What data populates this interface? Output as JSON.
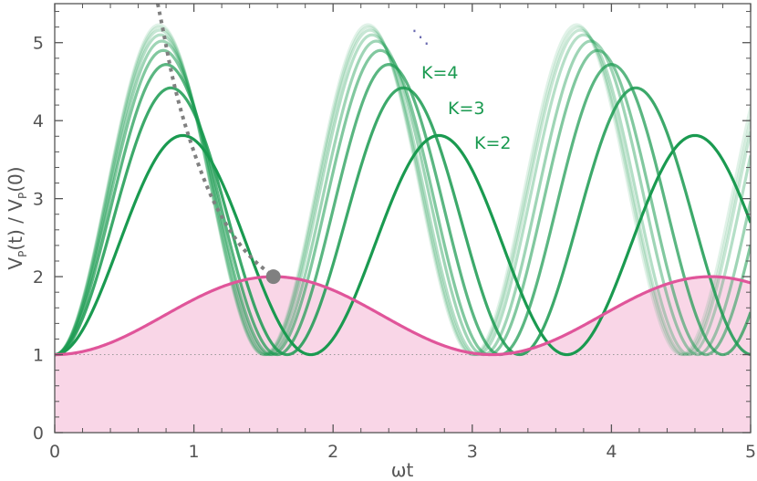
{
  "chart_data": {
    "type": "line",
    "xlabel": "ωt",
    "ylabel": "V_P(t) / V_P(0)",
    "ylabel_parts": [
      "V",
      "P",
      "(t) / V",
      "P",
      "(0)"
    ],
    "xlim": [
      0,
      5
    ],
    "ylim": [
      0,
      5.5
    ],
    "x_ticks": [
      0,
      1,
      2,
      3,
      4,
      5
    ],
    "y_ticks": [
      0,
      1,
      2,
      3,
      4,
      5
    ],
    "grid": false,
    "baseline_y": 1,
    "pink_curve": {
      "formula": "1.5 - 0.5*cos(2x)",
      "x": [
        0,
        0.5,
        1.0,
        1.5708,
        2.0,
        2.5,
        3.1416,
        3.5,
        4.0,
        4.7124,
        5.0
      ],
      "y": [
        1.0,
        1.23,
        1.71,
        2.0,
        1.83,
        1.36,
        1.0,
        1.19,
        1.64,
        2.0,
        1.92
      ],
      "color": "#e0559a",
      "fill_color": "#f9d6e7"
    },
    "green_series": [
      {
        "label": "K=2",
        "period": 1.84,
        "peak": 3.81,
        "x_peak": 0.92,
        "opacity": 1.0
      },
      {
        "label": "K=3",
        "period": 1.67,
        "peak": 4.42,
        "x_peak": 0.84,
        "opacity": 0.85
      },
      {
        "label": "K=4",
        "period": 1.6,
        "peak": 4.72,
        "x_peak": 0.8,
        "opacity": 0.72
      },
      {
        "label": "",
        "period": 1.56,
        "peak": 4.9,
        "x_peak": 0.78,
        "opacity": 0.55
      },
      {
        "label": "",
        "period": 1.54,
        "peak": 5.02,
        "x_peak": 0.77,
        "opacity": 0.42
      },
      {
        "label": "",
        "period": 1.52,
        "peak": 5.1,
        "x_peak": 0.76,
        "opacity": 0.32
      },
      {
        "label": "",
        "period": 1.51,
        "peak": 5.16,
        "x_peak": 0.755,
        "opacity": 0.24
      },
      {
        "label": "",
        "period": 1.505,
        "peak": 5.2,
        "x_peak": 0.752,
        "opacity": 0.18
      },
      {
        "label": "",
        "period": 1.5,
        "peak": 5.23,
        "x_peak": 0.75,
        "opacity": 0.13
      }
    ],
    "green_color": "#1a9a50",
    "dotted_curve": {
      "x": [
        0.74,
        0.78,
        0.85,
        0.95,
        1.1,
        1.25,
        1.4,
        1.5708
      ],
      "y": [
        5.5,
        5.15,
        4.5,
        3.85,
        3.1,
        2.6,
        2.25,
        2.0
      ],
      "color": "#808080"
    },
    "marker": {
      "x": 1.5708,
      "y": 2.0,
      "color": "#808080"
    },
    "ellipsis_label": "⋱",
    "annotations": [
      "K=4",
      "K=3",
      "K=2"
    ]
  }
}
